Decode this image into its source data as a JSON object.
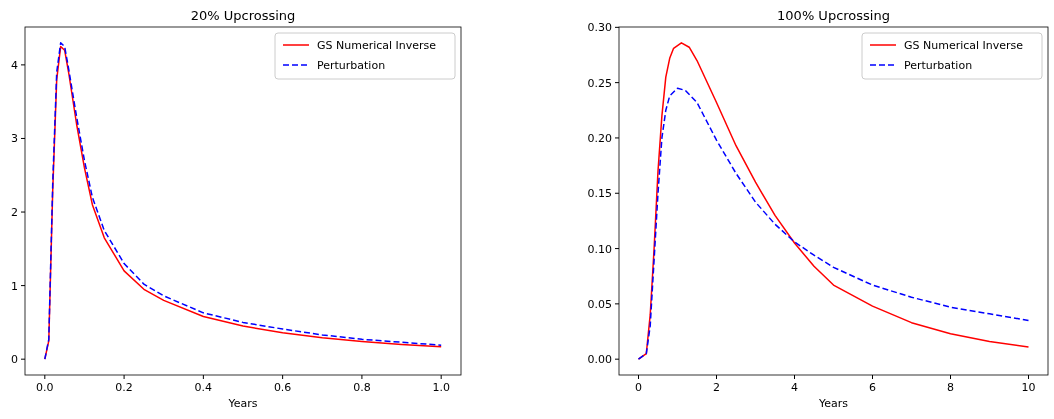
{
  "chart_data": [
    {
      "type": "line",
      "title": "20% Upcrossing",
      "xlabel": "Years",
      "xlim": [
        -0.05,
        1.05
      ],
      "ylim": [
        -0.215,
        4.515
      ],
      "xticks": [
        {
          "value": 0,
          "label": "0.0"
        },
        {
          "value": 0.2,
          "label": "0.2"
        },
        {
          "value": 0.4,
          "label": "0.4"
        },
        {
          "value": 0.6,
          "label": "0.6"
        },
        {
          "value": 0.8,
          "label": "0.8"
        },
        {
          "value": 1,
          "label": "1.0"
        }
      ],
      "yticks": [
        0,
        1,
        2,
        3,
        4
      ],
      "legend": "top right",
      "grid": false,
      "x": [
        0,
        0.01,
        0.02,
        0.03,
        0.04,
        0.05,
        0.06,
        0.08,
        0.1,
        0.12,
        0.15,
        0.2,
        0.25,
        0.3,
        0.4,
        0.5,
        0.6,
        0.7,
        0.8,
        0.9,
        1.0
      ],
      "series": [
        {
          "name": "GS Numerical Inverse",
          "color": "#ff0000",
          "line_style": "solid",
          "values": [
            0,
            0.25,
            2.3,
            3.8,
            4.25,
            4.2,
            3.9,
            3.2,
            2.6,
            2.1,
            1.65,
            1.2,
            0.95,
            0.8,
            0.58,
            0.45,
            0.36,
            0.29,
            0.24,
            0.2,
            0.17
          ]
        },
        {
          "name": "Perturbation",
          "color": "#0000ff",
          "line_style": "dashed",
          "values": [
            0,
            0.27,
            2.4,
            3.9,
            4.3,
            4.25,
            3.95,
            3.3,
            2.7,
            2.2,
            1.75,
            1.3,
            1.02,
            0.86,
            0.63,
            0.5,
            0.41,
            0.33,
            0.27,
            0.23,
            0.19
          ]
        }
      ]
    },
    {
      "type": "line",
      "title": "100% Upcrossing",
      "xlabel": "Years",
      "xlim": [
        -0.5,
        10.5
      ],
      "ylim": [
        -0.0143,
        0.3003
      ],
      "xticks": [
        0,
        2,
        4,
        6,
        8,
        10
      ],
      "yticks": [
        {
          "value": 0,
          "label": "0.00"
        },
        {
          "value": 0.05,
          "label": "0.05"
        },
        {
          "value": 0.1,
          "label": "0.10"
        },
        {
          "value": 0.15,
          "label": "0.15"
        },
        {
          "value": 0.2,
          "label": "0.20"
        },
        {
          "value": 0.25,
          "label": "0.25"
        },
        {
          "value": 0.3,
          "label": "0.30"
        }
      ],
      "legend": "top right",
      "grid": false,
      "series": [
        {
          "name": "GS Numerical Inverse",
          "color": "#ff0000",
          "line_style": "solid",
          "x": [
            0,
            0.2,
            0.3,
            0.4,
            0.5,
            0.6,
            0.7,
            0.8,
            0.9,
            1.1,
            1.3,
            1.5,
            2,
            2.5,
            3,
            3.5,
            4,
            4.5,
            5,
            6,
            7,
            8,
            9,
            10
          ],
          "values": [
            0,
            0.005,
            0.04,
            0.1,
            0.17,
            0.22,
            0.255,
            0.272,
            0.281,
            0.286,
            0.282,
            0.27,
            0.232,
            0.193,
            0.16,
            0.13,
            0.105,
            0.084,
            0.067,
            0.048,
            0.033,
            0.023,
            0.016,
            0.011
          ]
        },
        {
          "name": "Perturbation",
          "color": "#0000ff",
          "line_style": "dashed",
          "x": [
            0,
            0.2,
            0.3,
            0.4,
            0.5,
            0.6,
            0.7,
            0.8,
            1.0,
            1.2,
            1.5,
            2,
            2.5,
            3,
            3.5,
            4,
            4.5,
            5,
            6,
            7,
            8,
            9,
            10
          ],
          "values": [
            0,
            0.005,
            0.03,
            0.09,
            0.15,
            0.2,
            0.225,
            0.238,
            0.245,
            0.243,
            0.232,
            0.198,
            0.168,
            0.142,
            0.122,
            0.106,
            0.094,
            0.083,
            0.067,
            0.056,
            0.047,
            0.041,
            0.035
          ]
        }
      ]
    }
  ]
}
